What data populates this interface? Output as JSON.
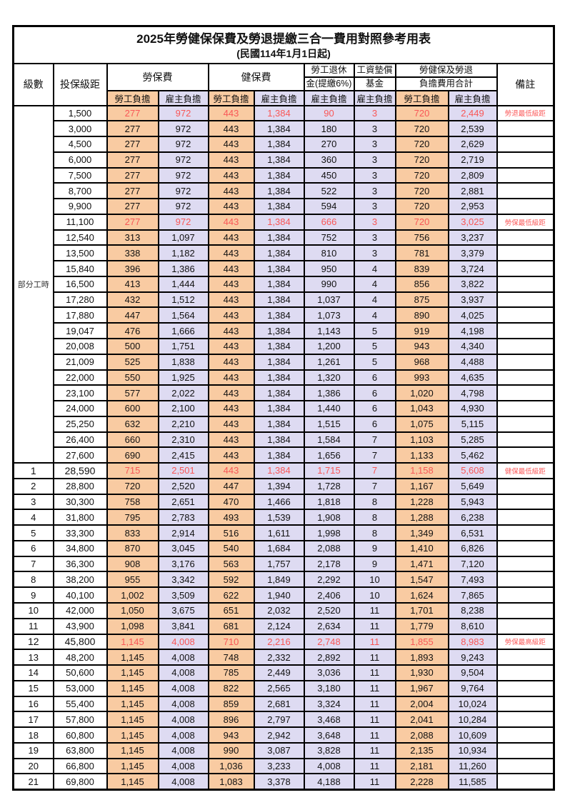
{
  "title": "2025年勞健保保費及勞退提繳三合一費用對照參考用表",
  "subtitle": "(民國114年1月1日起)",
  "columns": {
    "level": "級數",
    "bracket": "投保級距",
    "labor_insurance": "勞保費",
    "health_insurance": "健保費",
    "pension_line1": "勞工退休",
    "pension_line2": "金(提繳6%)",
    "wage_fund_line1": "工資墊償",
    "wage_fund_line2": "基金",
    "total_line1": "勞健保及勞退",
    "total_line2": "負擔費用合計",
    "remark": "備註"
  },
  "subheaders": {
    "employee": "勞工負擔",
    "employer": "雇主負擔"
  },
  "part_time_label": "部分工時",
  "colors": {
    "employee_bg": "#f9cba2",
    "employer_bg": "#dedbf2",
    "highlight_red": "#f95757",
    "border": "#000000"
  },
  "row_fields": [
    "level",
    "bracket",
    "labor_employee",
    "labor_employer",
    "health_employee",
    "health_employer",
    "pension",
    "wage_fund",
    "total_employee",
    "total_employer",
    "remark",
    "flags"
  ],
  "rows": [
    [
      "",
      "1,500",
      "277",
      "972",
      "443",
      "1,384",
      "90",
      "3",
      "720",
      "2,449",
      "勞退最低級距",
      "red"
    ],
    [
      "",
      "3,000",
      "277",
      "972",
      "443",
      "1,384",
      "180",
      "3",
      "720",
      "2,539",
      "",
      ""
    ],
    [
      "",
      "4,500",
      "277",
      "972",
      "443",
      "1,384",
      "270",
      "3",
      "720",
      "2,629",
      "",
      ""
    ],
    [
      "",
      "6,000",
      "277",
      "972",
      "443",
      "1,384",
      "360",
      "3",
      "720",
      "2,719",
      "",
      ""
    ],
    [
      "",
      "7,500",
      "277",
      "972",
      "443",
      "1,384",
      "450",
      "3",
      "720",
      "2,809",
      "",
      ""
    ],
    [
      "",
      "8,700",
      "277",
      "972",
      "443",
      "1,384",
      "522",
      "3",
      "720",
      "2,881",
      "",
      ""
    ],
    [
      "",
      "9,900",
      "277",
      "972",
      "443",
      "1,384",
      "594",
      "3",
      "720",
      "2,953",
      "",
      ""
    ],
    [
      "",
      "11,100",
      "277",
      "972",
      "443",
      "1,384",
      "666",
      "3",
      "720",
      "3,025",
      "勞保最低級距",
      "red"
    ],
    [
      "",
      "12,540",
      "313",
      "1,097",
      "443",
      "1,384",
      "752",
      "3",
      "756",
      "3,237",
      "",
      ""
    ],
    [
      "",
      "13,500",
      "338",
      "1,182",
      "443",
      "1,384",
      "810",
      "3",
      "781",
      "3,379",
      "",
      ""
    ],
    [
      "",
      "15,840",
      "396",
      "1,386",
      "443",
      "1,384",
      "950",
      "4",
      "839",
      "3,724",
      "",
      ""
    ],
    [
      "",
      "16,500",
      "413",
      "1,444",
      "443",
      "1,384",
      "990",
      "4",
      "856",
      "3,822",
      "",
      ""
    ],
    [
      "",
      "17,280",
      "432",
      "1,512",
      "443",
      "1,384",
      "1,037",
      "4",
      "875",
      "3,937",
      "",
      ""
    ],
    [
      "",
      "17,880",
      "447",
      "1,564",
      "443",
      "1,384",
      "1,073",
      "4",
      "890",
      "4,025",
      "",
      ""
    ],
    [
      "",
      "19,047",
      "476",
      "1,666",
      "443",
      "1,384",
      "1,143",
      "5",
      "919",
      "4,198",
      "",
      ""
    ],
    [
      "",
      "20,008",
      "500",
      "1,751",
      "443",
      "1,384",
      "1,200",
      "5",
      "943",
      "4,340",
      "",
      ""
    ],
    [
      "",
      "21,009",
      "525",
      "1,838",
      "443",
      "1,384",
      "1,261",
      "5",
      "968",
      "4,488",
      "",
      ""
    ],
    [
      "",
      "22,000",
      "550",
      "1,925",
      "443",
      "1,384",
      "1,320",
      "6",
      "993",
      "4,635",
      "",
      ""
    ],
    [
      "",
      "23,100",
      "577",
      "2,022",
      "443",
      "1,384",
      "1,386",
      "6",
      "1,020",
      "4,798",
      "",
      ""
    ],
    [
      "",
      "24,000",
      "600",
      "2,100",
      "443",
      "1,384",
      "1,440",
      "6",
      "1,043",
      "4,930",
      "",
      ""
    ],
    [
      "",
      "25,250",
      "632",
      "2,210",
      "443",
      "1,384",
      "1,515",
      "6",
      "1,075",
      "5,115",
      "",
      ""
    ],
    [
      "",
      "26,400",
      "660",
      "2,310",
      "443",
      "1,384",
      "1,584",
      "7",
      "1,103",
      "5,285",
      "",
      ""
    ],
    [
      "",
      "27,600",
      "690",
      "2,415",
      "443",
      "1,384",
      "1,656",
      "7",
      "1,133",
      "5,462",
      "",
      ""
    ],
    [
      "1",
      "28,590",
      "715",
      "2,501",
      "443",
      "1,384",
      "1,715",
      "7",
      "1,158",
      "5,608",
      "健保最低級距",
      "red bold"
    ],
    [
      "2",
      "28,800",
      "720",
      "2,520",
      "447",
      "1,394",
      "1,728",
      "7",
      "1,167",
      "5,649",
      "",
      ""
    ],
    [
      "3",
      "30,300",
      "758",
      "2,651",
      "470",
      "1,466",
      "1,818",
      "8",
      "1,228",
      "5,943",
      "",
      ""
    ],
    [
      "4",
      "31,800",
      "795",
      "2,783",
      "493",
      "1,539",
      "1,908",
      "8",
      "1,288",
      "6,238",
      "",
      ""
    ],
    [
      "5",
      "33,300",
      "833",
      "2,914",
      "516",
      "1,611",
      "1,998",
      "8",
      "1,349",
      "6,531",
      "",
      ""
    ],
    [
      "6",
      "34,800",
      "870",
      "3,045",
      "540",
      "1,684",
      "2,088",
      "9",
      "1,410",
      "6,826",
      "",
      ""
    ],
    [
      "7",
      "36,300",
      "908",
      "3,176",
      "563",
      "1,757",
      "2,178",
      "9",
      "1,471",
      "7,120",
      "",
      ""
    ],
    [
      "8",
      "38,200",
      "955",
      "3,342",
      "592",
      "1,849",
      "2,292",
      "10",
      "1,547",
      "7,493",
      "",
      ""
    ],
    [
      "9",
      "40,100",
      "1,002",
      "3,509",
      "622",
      "1,940",
      "2,406",
      "10",
      "1,624",
      "7,865",
      "",
      ""
    ],
    [
      "10",
      "42,000",
      "1,050",
      "3,675",
      "651",
      "2,032",
      "2,520",
      "11",
      "1,701",
      "8,238",
      "",
      ""
    ],
    [
      "11",
      "43,900",
      "1,098",
      "3,841",
      "681",
      "2,124",
      "2,634",
      "11",
      "1,779",
      "8,610",
      "",
      ""
    ],
    [
      "12",
      "45,800",
      "1,145",
      "4,008",
      "710",
      "2,216",
      "2,748",
      "11",
      "1,855",
      "8,983",
      "勞保最高級距",
      "red bold"
    ],
    [
      "13",
      "48,200",
      "1,145",
      "4,008",
      "748",
      "2,332",
      "2,892",
      "11",
      "1,893",
      "9,243",
      "",
      ""
    ],
    [
      "14",
      "50,600",
      "1,145",
      "4,008",
      "785",
      "2,449",
      "3,036",
      "11",
      "1,930",
      "9,504",
      "",
      ""
    ],
    [
      "15",
      "53,000",
      "1,145",
      "4,008",
      "822",
      "2,565",
      "3,180",
      "11",
      "1,967",
      "9,764",
      "",
      ""
    ],
    [
      "16",
      "55,400",
      "1,145",
      "4,008",
      "859",
      "2,681",
      "3,324",
      "11",
      "2,004",
      "10,024",
      "",
      ""
    ],
    [
      "17",
      "57,800",
      "1,145",
      "4,008",
      "896",
      "2,797",
      "3,468",
      "11",
      "2,041",
      "10,284",
      "",
      ""
    ],
    [
      "18",
      "60,800",
      "1,145",
      "4,008",
      "943",
      "2,942",
      "3,648",
      "11",
      "2,088",
      "10,609",
      "",
      ""
    ],
    [
      "19",
      "63,800",
      "1,145",
      "4,008",
      "990",
      "3,087",
      "3,828",
      "11",
      "2,135",
      "10,934",
      "",
      ""
    ],
    [
      "20",
      "66,800",
      "1,145",
      "4,008",
      "1,036",
      "3,233",
      "4,008",
      "11",
      "2,181",
      "11,260",
      "",
      ""
    ],
    [
      "21",
      "69,800",
      "1,145",
      "4,008",
      "1,083",
      "3,378",
      "4,188",
      "11",
      "2,228",
      "11,585",
      "",
      ""
    ]
  ]
}
